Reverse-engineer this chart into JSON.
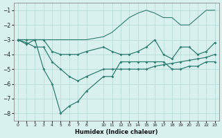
{
  "xlabel": "Humidex (Indice chaleur)",
  "x": [
    0,
    1,
    2,
    3,
    4,
    5,
    6,
    7,
    8,
    10,
    11,
    12,
    13,
    14,
    15,
    16,
    17,
    18,
    19,
    20,
    21,
    22,
    23
  ],
  "line_upper": [
    -3,
    -3,
    -3,
    -3,
    -3.8,
    -4,
    -4,
    -4,
    -3.8,
    -3.5,
    -3.8,
    -4,
    -4,
    -3.8,
    -3.5,
    -3,
    -4,
    -4.3,
    -3.5,
    -3.5,
    -4,
    -3.8,
    -3.2
  ],
  "line_lower": [
    -3,
    -3.3,
    -3,
    -5,
    -6,
    -8,
    -7.5,
    -7.2,
    -6.5,
    -5.5,
    -5.5,
    -4.5,
    -4.5,
    -4.5,
    -4.5,
    -4.5,
    -4.5,
    -5,
    -5,
    -4.8,
    -4.8,
    -4.5,
    -4.5
  ],
  "line_zigzag": [
    -3,
    -3.2,
    -3.5,
    -3.5,
    -4.5,
    -5,
    -5.5,
    -5.8,
    -5.5,
    -5,
    -5,
    -5,
    -5,
    -5,
    -5,
    -4.8,
    -4.7,
    -4.6,
    -4.5,
    -4.4,
    -4.3,
    -4.2,
    -4
  ],
  "line_straight": [
    -3,
    -3,
    -3,
    -3,
    -3,
    -3,
    -3,
    -3,
    -3,
    -2.8,
    -2.5,
    -2,
    -1.5,
    -1.2,
    -1,
    -1.2,
    -1.5,
    -1.5,
    -2,
    -2,
    -1.5,
    -1,
    -1
  ],
  "color": "#2e7d72",
  "bg_color": "#d8f0ee",
  "grid_color": "#b8dcd8",
  "ylim": [
    -8.5,
    -0.5
  ],
  "xlim": [
    -0.5,
    23.5
  ],
  "yticks": [
    -8,
    -7,
    -6,
    -5,
    -4,
    -3,
    -2,
    -1
  ],
  "xticks": [
    0,
    1,
    2,
    3,
    4,
    5,
    6,
    7,
    8,
    10,
    11,
    12,
    13,
    14,
    15,
    16,
    17,
    18,
    19,
    20,
    21,
    22,
    23
  ]
}
